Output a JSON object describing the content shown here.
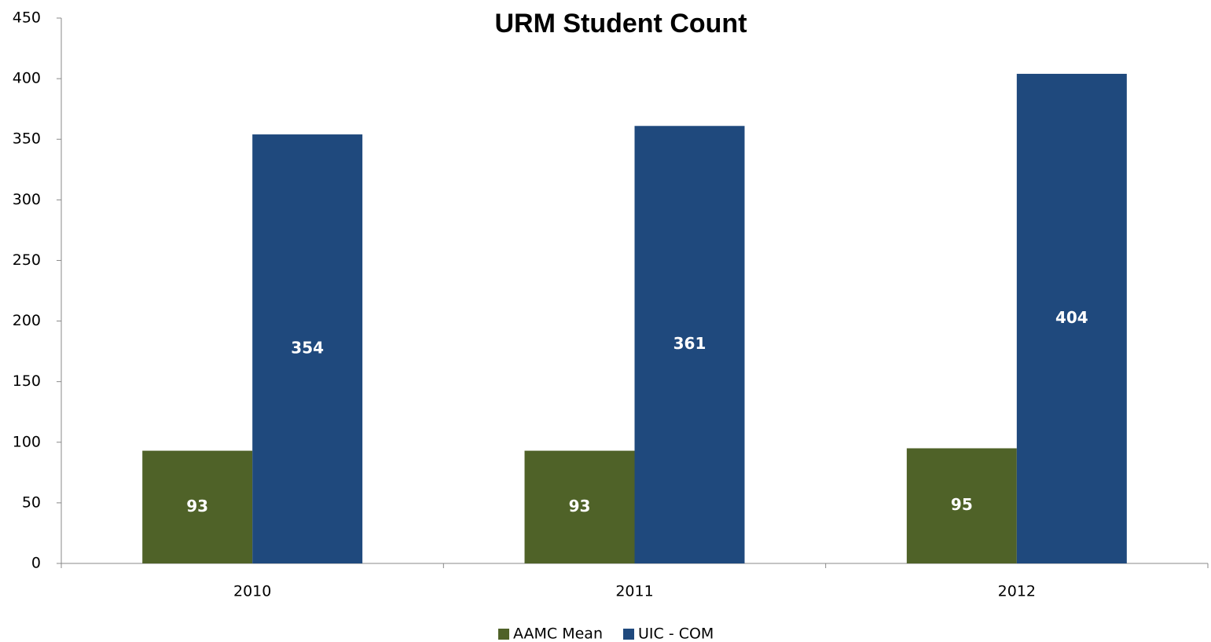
{
  "chart_data": {
    "type": "bar",
    "title": "URM Student Count",
    "categories": [
      "2010",
      "2011",
      "2012"
    ],
    "series": [
      {
        "name": "AAMC Mean",
        "color": "#4f6228",
        "values": [
          93,
          93,
          95
        ]
      },
      {
        "name": "UIC - COM",
        "color": "#1f497d",
        "values": [
          354,
          361,
          404
        ]
      }
    ],
    "ylim": [
      0,
      450
    ],
    "yticks": [
      0,
      50,
      100,
      150,
      200,
      250,
      300,
      350,
      400,
      450
    ],
    "grid": false,
    "legend": "bottom"
  }
}
